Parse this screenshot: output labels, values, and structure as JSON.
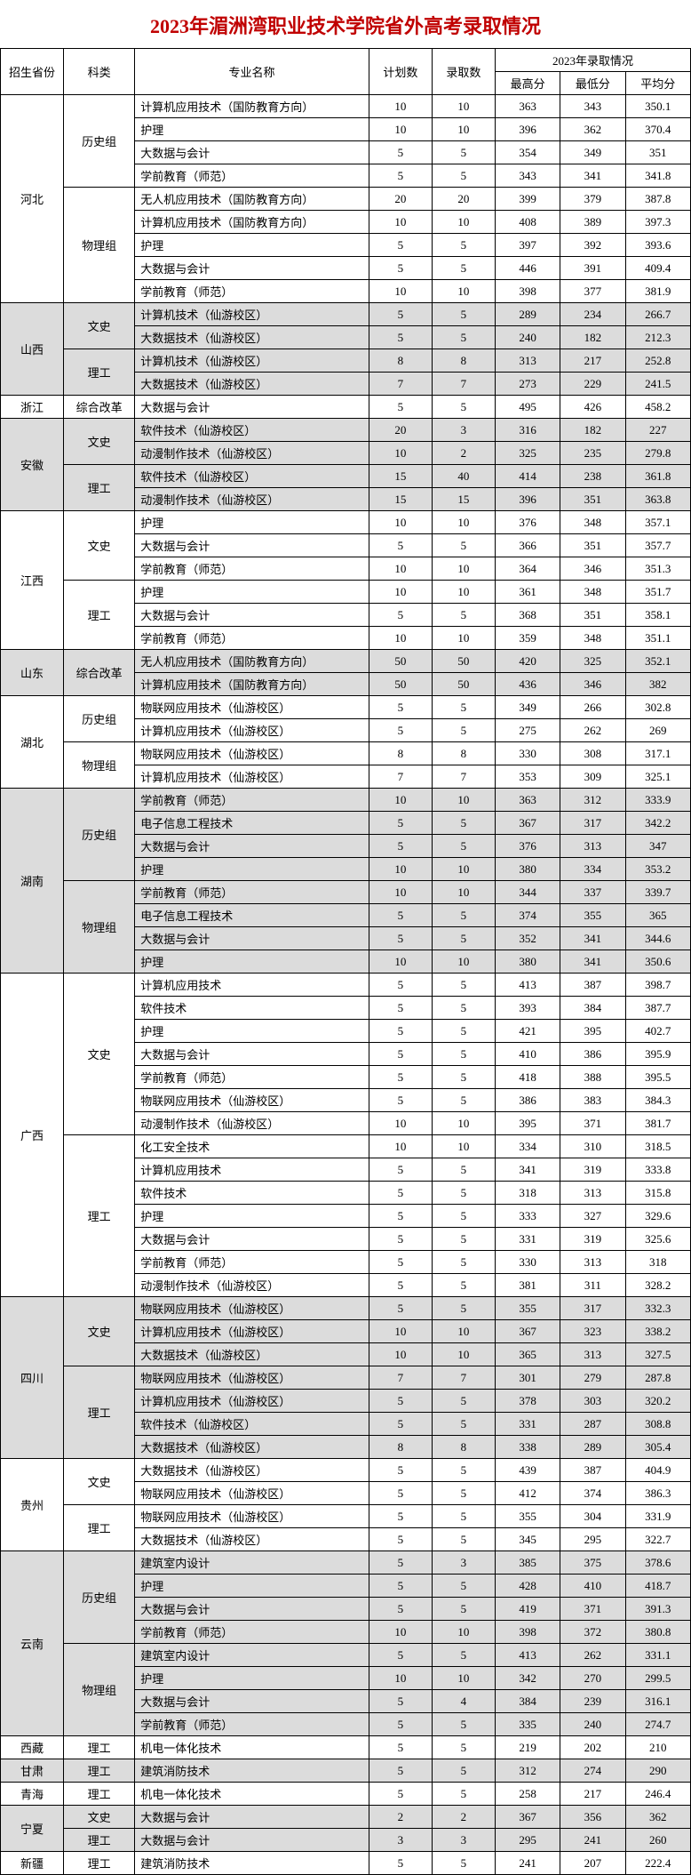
{
  "title": "2023年湄洲湾职业技术学院省外高考录取情况",
  "title_color": "#c00000",
  "headers": {
    "province": "招生省份",
    "category": "科类",
    "major": "专业名称",
    "plan": "计划数",
    "admitted": "录取数",
    "group": "2023年录取情况",
    "max": "最高分",
    "min": "最低分",
    "avg": "平均分"
  },
  "provinces": [
    {
      "name": "河北",
      "shaded": false,
      "categories": [
        {
          "name": "历史组",
          "rows": [
            {
              "major": "计算机应用技术（国防教育方向）",
              "plan": "10",
              "adm": "10",
              "max": "363",
              "min": "343",
              "avg": "350.1"
            },
            {
              "major": "护理",
              "plan": "10",
              "adm": "10",
              "max": "396",
              "min": "362",
              "avg": "370.4"
            },
            {
              "major": "大数据与会计",
              "plan": "5",
              "adm": "5",
              "max": "354",
              "min": "349",
              "avg": "351"
            },
            {
              "major": "学前教育（师范）",
              "plan": "5",
              "adm": "5",
              "max": "343",
              "min": "341",
              "avg": "341.8"
            }
          ]
        },
        {
          "name": "物理组",
          "rows": [
            {
              "major": "无人机应用技术（国防教育方向）",
              "plan": "20",
              "adm": "20",
              "max": "399",
              "min": "379",
              "avg": "387.8"
            },
            {
              "major": "计算机应用技术（国防教育方向）",
              "plan": "10",
              "adm": "10",
              "max": "408",
              "min": "389",
              "avg": "397.3"
            },
            {
              "major": "护理",
              "plan": "5",
              "adm": "5",
              "max": "397",
              "min": "392",
              "avg": "393.6"
            },
            {
              "major": "大数据与会计",
              "plan": "5",
              "adm": "5",
              "max": "446",
              "min": "391",
              "avg": "409.4"
            },
            {
              "major": "学前教育（师范）",
              "plan": "10",
              "adm": "10",
              "max": "398",
              "min": "377",
              "avg": "381.9"
            }
          ]
        }
      ]
    },
    {
      "name": "山西",
      "shaded": true,
      "categories": [
        {
          "name": "文史",
          "rows": [
            {
              "major": "计算机技术（仙游校区）",
              "plan": "5",
              "adm": "5",
              "max": "289",
              "min": "234",
              "avg": "266.7"
            },
            {
              "major": "大数据技术（仙游校区）",
              "plan": "5",
              "adm": "5",
              "max": "240",
              "min": "182",
              "avg": "212.3"
            }
          ]
        },
        {
          "name": "理工",
          "rows": [
            {
              "major": "计算机技术（仙游校区）",
              "plan": "8",
              "adm": "8",
              "max": "313",
              "min": "217",
              "avg": "252.8"
            },
            {
              "major": "大数据技术（仙游校区）",
              "plan": "7",
              "adm": "7",
              "max": "273",
              "min": "229",
              "avg": "241.5"
            }
          ]
        }
      ]
    },
    {
      "name": "浙江",
      "shaded": false,
      "categories": [
        {
          "name": "综合改革",
          "rows": [
            {
              "major": "大数据与会计",
              "plan": "5",
              "adm": "5",
              "max": "495",
              "min": "426",
              "avg": "458.2"
            }
          ]
        }
      ]
    },
    {
      "name": "安徽",
      "shaded": true,
      "categories": [
        {
          "name": "文史",
          "rows": [
            {
              "major": "软件技术（仙游校区）",
              "plan": "20",
              "adm": "3",
              "max": "316",
              "min": "182",
              "avg": "227"
            },
            {
              "major": "动漫制作技术（仙游校区）",
              "plan": "10",
              "adm": "2",
              "max": "325",
              "min": "235",
              "avg": "279.8"
            }
          ]
        },
        {
          "name": "理工",
          "rows": [
            {
              "major": "软件技术（仙游校区）",
              "plan": "15",
              "adm": "40",
              "max": "414",
              "min": "238",
              "avg": "361.8"
            },
            {
              "major": "动漫制作技术（仙游校区）",
              "plan": "15",
              "adm": "15",
              "max": "396",
              "min": "351",
              "avg": "363.8"
            }
          ]
        }
      ]
    },
    {
      "name": "江西",
      "shaded": false,
      "categories": [
        {
          "name": "文史",
          "rows": [
            {
              "major": "护理",
              "plan": "10",
              "adm": "10",
              "max": "376",
              "min": "348",
              "avg": "357.1"
            },
            {
              "major": "大数据与会计",
              "plan": "5",
              "adm": "5",
              "max": "366",
              "min": "351",
              "avg": "357.7"
            },
            {
              "major": "学前教育（师范）",
              "plan": "10",
              "adm": "10",
              "max": "364",
              "min": "346",
              "avg": "351.3"
            }
          ]
        },
        {
          "name": "理工",
          "rows": [
            {
              "major": "护理",
              "plan": "10",
              "adm": "10",
              "max": "361",
              "min": "348",
              "avg": "351.7"
            },
            {
              "major": "大数据与会计",
              "plan": "5",
              "adm": "5",
              "max": "368",
              "min": "351",
              "avg": "358.1"
            },
            {
              "major": "学前教育（师范）",
              "plan": "10",
              "adm": "10",
              "max": "359",
              "min": "348",
              "avg": "351.1"
            }
          ]
        }
      ]
    },
    {
      "name": "山东",
      "shaded": true,
      "categories": [
        {
          "name": "综合改革",
          "rows": [
            {
              "major": "无人机应用技术（国防教育方向）",
              "plan": "50",
              "adm": "50",
              "max": "420",
              "min": "325",
              "avg": "352.1"
            },
            {
              "major": "计算机应用技术（国防教育方向）",
              "plan": "50",
              "adm": "50",
              "max": "436",
              "min": "346",
              "avg": "382"
            }
          ]
        }
      ]
    },
    {
      "name": "湖北",
      "shaded": false,
      "categories": [
        {
          "name": "历史组",
          "rows": [
            {
              "major": "物联网应用技术（仙游校区）",
              "plan": "5",
              "adm": "5",
              "max": "349",
              "min": "266",
              "avg": "302.8"
            },
            {
              "major": "计算机应用技术（仙游校区）",
              "plan": "5",
              "adm": "5",
              "max": "275",
              "min": "262",
              "avg": "269"
            }
          ]
        },
        {
          "name": "物理组",
          "rows": [
            {
              "major": "物联网应用技术（仙游校区）",
              "plan": "8",
              "adm": "8",
              "max": "330",
              "min": "308",
              "avg": "317.1"
            },
            {
              "major": "计算机应用技术（仙游校区）",
              "plan": "7",
              "adm": "7",
              "max": "353",
              "min": "309",
              "avg": "325.1"
            }
          ]
        }
      ]
    },
    {
      "name": "湖南",
      "shaded": true,
      "categories": [
        {
          "name": "历史组",
          "rows": [
            {
              "major": "学前教育（师范）",
              "plan": "10",
              "adm": "10",
              "max": "363",
              "min": "312",
              "avg": "333.9"
            },
            {
              "major": "电子信息工程技术",
              "plan": "5",
              "adm": "5",
              "max": "367",
              "min": "317",
              "avg": "342.2"
            },
            {
              "major": "大数据与会计",
              "plan": "5",
              "adm": "5",
              "max": "376",
              "min": "313",
              "avg": "347"
            },
            {
              "major": "护理",
              "plan": "10",
              "adm": "10",
              "max": "380",
              "min": "334",
              "avg": "353.2"
            }
          ]
        },
        {
          "name": "物理组",
          "rows": [
            {
              "major": "学前教育（师范）",
              "plan": "10",
              "adm": "10",
              "max": "344",
              "min": "337",
              "avg": "339.7"
            },
            {
              "major": "电子信息工程技术",
              "plan": "5",
              "adm": "5",
              "max": "374",
              "min": "355",
              "avg": "365"
            },
            {
              "major": "大数据与会计",
              "plan": "5",
              "adm": "5",
              "max": "352",
              "min": "341",
              "avg": "344.6"
            },
            {
              "major": "护理",
              "plan": "10",
              "adm": "10",
              "max": "380",
              "min": "341",
              "avg": "350.6"
            }
          ]
        }
      ]
    },
    {
      "name": "广西",
      "shaded": false,
      "categories": [
        {
          "name": "文史",
          "rows": [
            {
              "major": "计算机应用技术",
              "plan": "5",
              "adm": "5",
              "max": "413",
              "min": "387",
              "avg": "398.7"
            },
            {
              "major": "软件技术",
              "plan": "5",
              "adm": "5",
              "max": "393",
              "min": "384",
              "avg": "387.7"
            },
            {
              "major": "护理",
              "plan": "5",
              "adm": "5",
              "max": "421",
              "min": "395",
              "avg": "402.7"
            },
            {
              "major": "大数据与会计",
              "plan": "5",
              "adm": "5",
              "max": "410",
              "min": "386",
              "avg": "395.9"
            },
            {
              "major": "学前教育（师范）",
              "plan": "5",
              "adm": "5",
              "max": "418",
              "min": "388",
              "avg": "395.5"
            },
            {
              "major": "物联网应用技术（仙游校区）",
              "plan": "5",
              "adm": "5",
              "max": "386",
              "min": "383",
              "avg": "384.3"
            },
            {
              "major": "动漫制作技术（仙游校区）",
              "plan": "10",
              "adm": "10",
              "max": "395",
              "min": "371",
              "avg": "381.7"
            }
          ]
        },
        {
          "name": "理工",
          "rows": [
            {
              "major": "化工安全技术",
              "plan": "10",
              "adm": "10",
              "max": "334",
              "min": "310",
              "avg": "318.5"
            },
            {
              "major": "计算机应用技术",
              "plan": "5",
              "adm": "5",
              "max": "341",
              "min": "319",
              "avg": "333.8"
            },
            {
              "major": "软件技术",
              "plan": "5",
              "adm": "5",
              "max": "318",
              "min": "313",
              "avg": "315.8"
            },
            {
              "major": "护理",
              "plan": "5",
              "adm": "5",
              "max": "333",
              "min": "327",
              "avg": "329.6"
            },
            {
              "major": "大数据与会计",
              "plan": "5",
              "adm": "5",
              "max": "331",
              "min": "319",
              "avg": "325.6"
            },
            {
              "major": "学前教育（师范）",
              "plan": "5",
              "adm": "5",
              "max": "330",
              "min": "313",
              "avg": "318"
            },
            {
              "major": "动漫制作技术（仙游校区）",
              "plan": "5",
              "adm": "5",
              "max": "381",
              "min": "311",
              "avg": "328.2"
            }
          ]
        }
      ]
    },
    {
      "name": "四川",
      "shaded": true,
      "categories": [
        {
          "name": "文史",
          "rows": [
            {
              "major": "物联网应用技术（仙游校区）",
              "plan": "5",
              "adm": "5",
              "max": "355",
              "min": "317",
              "avg": "332.3"
            },
            {
              "major": "计算机应用技术（仙游校区）",
              "plan": "10",
              "adm": "10",
              "max": "367",
              "min": "323",
              "avg": "338.2"
            },
            {
              "major": "大数据技术（仙游校区）",
              "plan": "10",
              "adm": "10",
              "max": "365",
              "min": "313",
              "avg": "327.5"
            }
          ]
        },
        {
          "name": "理工",
          "rows": [
            {
              "major": "物联网应用技术（仙游校区）",
              "plan": "7",
              "adm": "7",
              "max": "301",
              "min": "279",
              "avg": "287.8"
            },
            {
              "major": "计算机应用技术（仙游校区）",
              "plan": "5",
              "adm": "5",
              "max": "378",
              "min": "303",
              "avg": "320.2"
            },
            {
              "major": "软件技术（仙游校区）",
              "plan": "5",
              "adm": "5",
              "max": "331",
              "min": "287",
              "avg": "308.8"
            },
            {
              "major": "大数据技术（仙游校区）",
              "plan": "8",
              "adm": "8",
              "max": "338",
              "min": "289",
              "avg": "305.4"
            }
          ]
        }
      ]
    },
    {
      "name": "贵州",
      "shaded": false,
      "categories": [
        {
          "name": "文史",
          "rows": [
            {
              "major": "大数据技术（仙游校区）",
              "plan": "5",
              "adm": "5",
              "max": "439",
              "min": "387",
              "avg": "404.9"
            },
            {
              "major": "物联网应用技术（仙游校区）",
              "plan": "5",
              "adm": "5",
              "max": "412",
              "min": "374",
              "avg": "386.3"
            }
          ]
        },
        {
          "name": "理工",
          "rows": [
            {
              "major": "物联网应用技术（仙游校区）",
              "plan": "5",
              "adm": "5",
              "max": "355",
              "min": "304",
              "avg": "331.9"
            },
            {
              "major": "大数据技术（仙游校区）",
              "plan": "5",
              "adm": "5",
              "max": "345",
              "min": "295",
              "avg": "322.7"
            }
          ]
        }
      ]
    },
    {
      "name": "云南",
      "shaded": true,
      "categories": [
        {
          "name": "历史组",
          "rows": [
            {
              "major": "建筑室内设计",
              "plan": "5",
              "adm": "3",
              "max": "385",
              "min": "375",
              "avg": "378.6"
            },
            {
              "major": "护理",
              "plan": "5",
              "adm": "5",
              "max": "428",
              "min": "410",
              "avg": "418.7"
            },
            {
              "major": "大数据与会计",
              "plan": "5",
              "adm": "5",
              "max": "419",
              "min": "371",
              "avg": "391.3"
            },
            {
              "major": "学前教育（师范）",
              "plan": "10",
              "adm": "10",
              "max": "398",
              "min": "372",
              "avg": "380.8"
            }
          ]
        },
        {
          "name": "物理组",
          "rows": [
            {
              "major": "建筑室内设计",
              "plan": "5",
              "adm": "5",
              "max": "413",
              "min": "262",
              "avg": "331.1"
            },
            {
              "major": "护理",
              "plan": "10",
              "adm": "10",
              "max": "342",
              "min": "270",
              "avg": "299.5"
            },
            {
              "major": "大数据与会计",
              "plan": "5",
              "adm": "4",
              "max": "384",
              "min": "239",
              "avg": "316.1"
            },
            {
              "major": "学前教育（师范）",
              "plan": "5",
              "adm": "5",
              "max": "335",
              "min": "240",
              "avg": "274.7"
            }
          ]
        }
      ]
    },
    {
      "name": "西藏",
      "shaded": false,
      "categories": [
        {
          "name": "理工",
          "rows": [
            {
              "major": "机电一体化技术",
              "plan": "5",
              "adm": "5",
              "max": "219",
              "min": "202",
              "avg": "210"
            }
          ]
        }
      ]
    },
    {
      "name": "甘肃",
      "shaded": true,
      "categories": [
        {
          "name": "理工",
          "rows": [
            {
              "major": "建筑消防技术",
              "plan": "5",
              "adm": "5",
              "max": "312",
              "min": "274",
              "avg": "290"
            }
          ]
        }
      ]
    },
    {
      "name": "青海",
      "shaded": false,
      "categories": [
        {
          "name": "理工",
          "rows": [
            {
              "major": "机电一体化技术",
              "plan": "5",
              "adm": "5",
              "max": "258",
              "min": "217",
              "avg": "246.4"
            }
          ]
        }
      ]
    },
    {
      "name": "宁夏",
      "shaded": true,
      "categories": [
        {
          "name": "文史",
          "rows": [
            {
              "major": "大数据与会计",
              "plan": "2",
              "adm": "2",
              "max": "367",
              "min": "356",
              "avg": "362"
            }
          ]
        },
        {
          "name": "理工",
          "rows": [
            {
              "major": "大数据与会计",
              "plan": "3",
              "adm": "3",
              "max": "295",
              "min": "241",
              "avg": "260"
            }
          ]
        }
      ]
    },
    {
      "name": "新疆",
      "shaded": false,
      "categories": [
        {
          "name": "理工",
          "rows": [
            {
              "major": "建筑消防技术",
              "plan": "5",
              "adm": "5",
              "max": "241",
              "min": "207",
              "avg": "222.4"
            }
          ]
        }
      ]
    }
  ]
}
